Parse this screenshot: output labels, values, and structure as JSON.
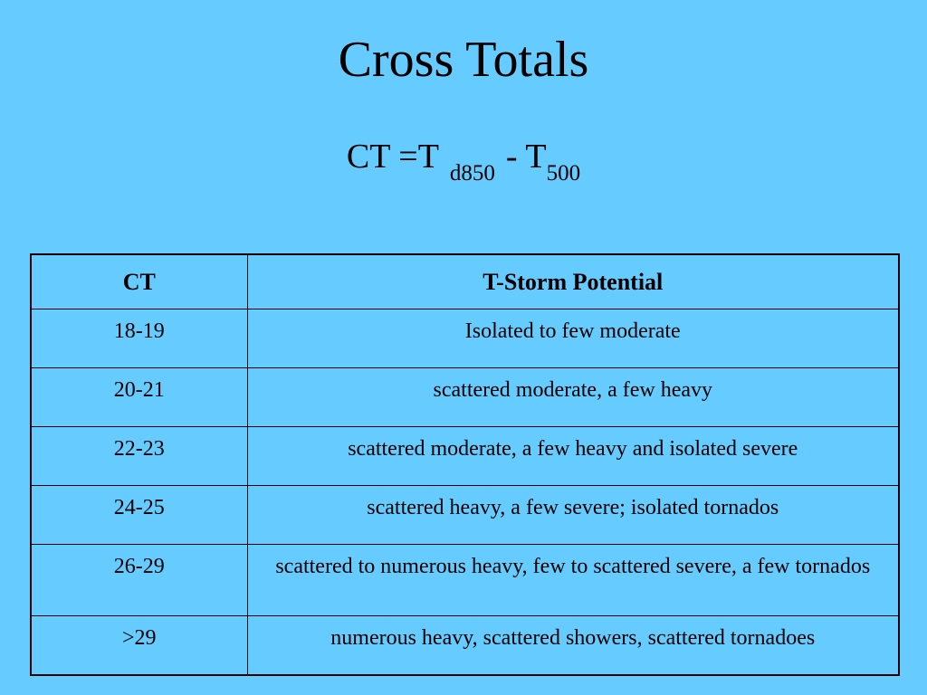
{
  "slide": {
    "title": "Cross Totals",
    "formula": {
      "lhs": "CT =T",
      "sub1": "d850",
      "minus": "- T",
      "sub2": "500"
    }
  },
  "table": {
    "headers": [
      "CT",
      "T-Storm Potential"
    ],
    "rows": [
      {
        "ct": "18-19",
        "potential": "Isolated to few moderate"
      },
      {
        "ct": "20-21",
        "potential": "scattered moderate, a few heavy"
      },
      {
        "ct": "22-23",
        "potential": "scattered moderate, a few heavy and isolated severe"
      },
      {
        "ct": "24-25",
        "potential": "scattered heavy, a few severe; isolated tornados"
      },
      {
        "ct": "26-29",
        "potential": "scattered to numerous heavy, few to scattered severe, a few tornados"
      },
      {
        "ct": ">29",
        "potential": "numerous heavy, scattered showers, scattered tornadoes"
      }
    ]
  }
}
